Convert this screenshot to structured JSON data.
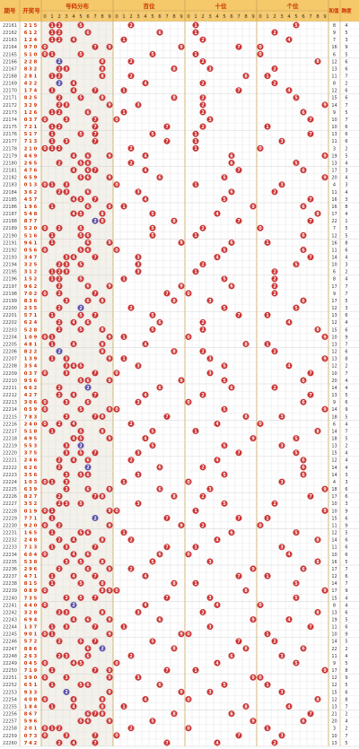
{
  "colors": {
    "header_bg": "#f5c86a",
    "header_text": "#cc3300",
    "grid": "#dddddd",
    "zone_a": "#ffffff",
    "zone_b": "#f3f1ea",
    "red_ball": "#cc3333",
    "blue_ball": "#5a4fa8",
    "blue_text": "#2233aa"
  },
  "header": {
    "issue_label": "期号",
    "draw_label": "开奖号",
    "sections": [
      "号码分布",
      "百位",
      "十位",
      "个位"
    ],
    "tail_label_a": "和值",
    "tail_label_b": "跨度"
  },
  "chart_data": {
    "type": "table",
    "title": "",
    "digit_columns": [
      "0",
      "1",
      "2",
      "3",
      "4",
      "5",
      "6",
      "7",
      "8",
      "9"
    ],
    "rows": [
      {
        "issue": "22161",
        "draw": [
          2,
          1,
          5
        ],
        "sum": 8,
        "span": 4
      },
      {
        "issue": "22162",
        "draw": [
          6,
          1,
          2
        ],
        "sum": 9,
        "span": 5
      },
      {
        "issue": "22163",
        "draw": [
          1,
          2,
          4
        ],
        "sum": 7,
        "span": 3
      },
      {
        "issue": "22164",
        "draw": [
          9,
          7,
          0
        ],
        "sum": 16,
        "span": 9
      },
      {
        "issue": "22165",
        "draw": [
          5,
          1,
          0
        ],
        "sum": 6,
        "span": 5
      },
      {
        "issue": "22166",
        "draw": [
          2,
          2,
          8
        ],
        "sum": 12,
        "span": 6
      },
      {
        "issue": "22167",
        "draw": [
          8,
          3,
          2
        ],
        "sum": 13,
        "span": 6
      },
      {
        "issue": "22168",
        "draw": [
          2,
          8,
          1
        ],
        "sum": 11,
        "span": 7
      },
      {
        "issue": "22169",
        "draw": [
          4,
          2,
          2
        ],
        "sum": 8,
        "span": 2
      },
      {
        "issue": "22170",
        "draw": [
          1,
          7,
          4
        ],
        "sum": 12,
        "span": 6
      },
      {
        "issue": "22171",
        "draw": [
          8,
          2,
          5
        ],
        "sum": 15,
        "span": 6
      },
      {
        "issue": "22172",
        "draw": [
          3,
          2,
          9
        ],
        "sum": 14,
        "span": 7
      },
      {
        "issue": "22173",
        "draw": [
          1,
          2,
          6
        ],
        "sum": 9,
        "span": 5
      },
      {
        "issue": "22174",
        "draw": [
          0,
          3,
          7
        ],
        "sum": 10,
        "span": 7
      },
      {
        "issue": "22175",
        "draw": [
          7,
          2,
          1
        ],
        "sum": 10,
        "span": 6
      },
      {
        "issue": "22176",
        "draw": [
          5,
          1,
          7
        ],
        "sum": 13,
        "span": 6
      },
      {
        "issue": "22177",
        "draw": [
          7,
          1,
          3
        ],
        "sum": 11,
        "span": 6
      },
      {
        "issue": "22178",
        "draw": [
          2,
          1,
          0
        ],
        "sum": 3,
        "span": 2
      },
      {
        "issue": "22179",
        "draw": [
          4,
          6,
          9
        ],
        "sum": 19,
        "span": 5
      },
      {
        "issue": "22180",
        "draw": [
          2,
          6,
          5
        ],
        "sum": 13,
        "span": 4
      },
      {
        "issue": "22181",
        "draw": [
          4,
          7,
          6
        ],
        "sum": 17,
        "span": 3
      },
      {
        "issue": "22182",
        "draw": [
          6,
          5,
          9
        ],
        "sum": 20,
        "span": 4
      },
      {
        "issue": "22183",
        "draw": [
          0,
          1,
          3
        ],
        "sum": 4,
        "span": 3
      },
      {
        "issue": "22184",
        "draw": [
          3,
          6,
          2
        ],
        "sum": 11,
        "span": 4
      },
      {
        "issue": "22185",
        "draw": [
          4,
          5,
          7
        ],
        "sum": 16,
        "span": 3
      },
      {
        "issue": "22186",
        "draw": [
          1,
          9,
          6
        ],
        "sum": 16,
        "span": 8
      },
      {
        "issue": "22187",
        "draw": [
          5,
          4,
          8
        ],
        "sum": 17,
        "span": 4
      },
      {
        "issue": "22188",
        "draw": [
          8,
          7,
          7
        ],
        "sum": 22,
        "span": 1
      },
      {
        "issue": "22189",
        "draw": [
          5,
          2,
          0
        ],
        "sum": 7,
        "span": 5
      },
      {
        "issue": "22190",
        "draw": [
          5,
          1,
          6
        ],
        "sum": 12,
        "span": 5
      },
      {
        "issue": "22191",
        "draw": [
          9,
          6,
          1
        ],
        "sum": 16,
        "span": 8
      },
      {
        "issue": "22192",
        "draw": [
          0,
          5,
          6
        ],
        "sum": 11,
        "span": 6
      },
      {
        "issue": "22193",
        "draw": [
          3,
          4,
          7
        ],
        "sum": 14,
        "span": 4
      },
      {
        "issue": "22194",
        "draw": [
          3,
          2,
          5
        ],
        "sum": 10,
        "span": 3
      },
      {
        "issue": "22195",
        "draw": [
          3,
          1,
          2
        ],
        "sum": 6,
        "span": 2
      },
      {
        "issue": "22196",
        "draw": [
          1,
          5,
          2
        ],
        "sum": 8,
        "span": 4
      },
      {
        "issue": "22197",
        "draw": [
          9,
          6,
          2
        ],
        "sum": 17,
        "span": 7
      },
      {
        "issue": "22198",
        "draw": [
          7,
          0,
          2
        ],
        "sum": 9,
        "span": 7
      },
      {
        "issue": "22199",
        "draw": [
          8,
          3,
          6
        ],
        "sum": 17,
        "span": 5
      },
      {
        "issue": "22200",
        "draw": [
          2,
          5,
          5
        ],
        "sum": 12,
        "span": 3
      },
      {
        "issue": "22201",
        "draw": [
          5,
          7,
          1
        ],
        "sum": 13,
        "span": 6
      },
      {
        "issue": "22202",
        "draw": [
          6,
          2,
          4
        ],
        "sum": 12,
        "span": 4
      },
      {
        "issue": "22203",
        "draw": [
          5,
          2,
          8
        ],
        "sum": 15,
        "span": 6
      },
      {
        "issue": "22204",
        "draw": [
          1,
          0,
          9
        ],
        "sum": 10,
        "span": 9
      },
      {
        "issue": "22205",
        "draw": [
          4,
          8,
          1
        ],
        "sum": 13,
        "span": 7
      },
      {
        "issue": "22206",
        "draw": [
          8,
          2,
          2
        ],
        "sum": 12,
        "span": 6
      },
      {
        "issue": "22207",
        "draw": [
          1,
          3,
          9
        ],
        "sum": 13,
        "span": 8
      },
      {
        "issue": "22208",
        "draw": [
          3,
          5,
          4
        ],
        "sum": 12,
        "span": 2
      },
      {
        "issue": "22209",
        "draw": [
          0,
          3,
          7
        ],
        "sum": 10,
        "span": 7
      },
      {
        "issue": "22210",
        "draw": [
          9,
          5,
          6
        ],
        "sum": 20,
        "span": 4
      },
      {
        "issue": "22211",
        "draw": [
          6,
          6,
          2
        ],
        "sum": 14,
        "span": 4
      },
      {
        "issue": "22212",
        "draw": [
          4,
          2,
          7
        ],
        "sum": 13,
        "span": 5
      },
      {
        "issue": "22213",
        "draw": [
          3,
          0,
          6
        ],
        "sum": 9,
        "span": 6
      },
      {
        "issue": "22214",
        "draw": [
          0,
          5,
          9
        ],
        "sum": 14,
        "span": 9
      },
      {
        "issue": "22215",
        "draw": [
          7,
          8,
          3
        ],
        "sum": 18,
        "span": 5
      },
      {
        "issue": "22216",
        "draw": [
          2,
          4,
          0
        ],
        "sum": 6,
        "span": 4
      },
      {
        "issue": "22217",
        "draw": [
          5,
          1,
          8
        ],
        "sum": 14,
        "span": 7
      },
      {
        "issue": "22218",
        "draw": [
          4,
          9,
          5
        ],
        "sum": 18,
        "span": 5
      },
      {
        "issue": "22219",
        "draw": [
          5,
          5,
          3
        ],
        "sum": 13,
        "span": 2
      },
      {
        "issue": "22220",
        "draw": [
          3,
          7,
          5
        ],
        "sum": 15,
        "span": 4
      },
      {
        "issue": "22221",
        "draw": [
          2,
          4,
          6
        ],
        "sum": 12,
        "span": 4
      },
      {
        "issue": "22222",
        "draw": [
          6,
          2,
          6
        ],
        "sum": 14,
        "span": 4
      },
      {
        "issue": "22223",
        "draw": [
          3,
          5,
          6
        ],
        "sum": 14,
        "span": 3
      },
      {
        "issue": "22224",
        "draw": [
          1,
          0,
          3
        ],
        "sum": 4,
        "span": 3
      },
      {
        "issue": "22225",
        "draw": [
          6,
          3,
          9
        ],
        "sum": 18,
        "span": 6
      },
      {
        "issue": "22226",
        "draw": [
          8,
          2,
          7
        ],
        "sum": 17,
        "span": 6
      },
      {
        "issue": "22227",
        "draw": [
          3,
          5,
          2
        ],
        "sum": 10,
        "span": 3
      },
      {
        "issue": "22228",
        "draw": [
          0,
          1,
          9
        ],
        "sum": 10,
        "span": 9
      },
      {
        "issue": "22229",
        "draw": [
          7,
          7,
          1
        ],
        "sum": 15,
        "span": 6
      },
      {
        "issue": "22230",
        "draw": [
          9,
          2,
          0
        ],
        "sum": 11,
        "span": 9
      },
      {
        "issue": "22231",
        "draw": [
          1,
          6,
          5
        ],
        "sum": 12,
        "span": 5
      },
      {
        "issue": "22232",
        "draw": [
          2,
          4,
          8
        ],
        "sum": 14,
        "span": 6
      },
      {
        "issue": "22233",
        "draw": [
          7,
          1,
          3
        ],
        "sum": 11,
        "span": 6
      },
      {
        "issue": "22234",
        "draw": [
          6,
          0,
          4
        ],
        "sum": 10,
        "span": 6
      },
      {
        "issue": "22235",
        "draw": [
          5,
          3,
          8
        ],
        "sum": 16,
        "span": 5
      },
      {
        "issue": "22236",
        "draw": [
          2,
          9,
          6
        ],
        "sum": 17,
        "span": 7
      },
      {
        "issue": "22237",
        "draw": [
          4,
          7,
          1
        ],
        "sum": 12,
        "span": 6
      },
      {
        "issue": "22238",
        "draw": [
          8,
          1,
          5
        ],
        "sum": 14,
        "span": 7
      },
      {
        "issue": "22239",
        "draw": [
          0,
          8,
          9
        ],
        "sum": 17,
        "span": 9
      },
      {
        "issue": "22240",
        "draw": [
          7,
          3,
          5
        ],
        "sum": 15,
        "span": 4
      },
      {
        "issue": "22241",
        "draw": [
          4,
          4,
          0
        ],
        "sum": 8,
        "span": 4
      },
      {
        "issue": "22242",
        "draw": [
          3,
          2,
          8
        ],
        "sum": 13,
        "span": 6
      },
      {
        "issue": "22243",
        "draw": [
          6,
          9,
          4
        ],
        "sum": 19,
        "span": 5
      },
      {
        "issue": "22244",
        "draw": [
          1,
          3,
          7
        ],
        "sum": 11,
        "span": 6
      },
      {
        "issue": "22245",
        "draw": [
          9,
          0,
          1
        ],
        "sum": 10,
        "span": 9
      },
      {
        "issue": "22246",
        "draw": [
          5,
          7,
          2
        ],
        "sum": 14,
        "span": 5
      },
      {
        "issue": "22247",
        "draw": [
          8,
          8,
          6
        ],
        "sum": 22,
        "span": 2
      },
      {
        "issue": "22248",
        "draw": [
          2,
          6,
          3
        ],
        "sum": 11,
        "span": 4
      },
      {
        "issue": "22249",
        "draw": [
          0,
          4,
          5
        ],
        "sum": 9,
        "span": 5
      },
      {
        "issue": "22250",
        "draw": [
          7,
          1,
          9
        ],
        "sum": 17,
        "span": 8
      },
      {
        "issue": "22251",
        "draw": [
          3,
          9,
          0
        ],
        "sum": 12,
        "span": 9
      },
      {
        "issue": "22252",
        "draw": [
          6,
          5,
          1
        ],
        "sum": 12,
        "span": 5
      },
      {
        "issue": "22253",
        "draw": [
          9,
          3,
          3
        ],
        "sum": 15,
        "span": 6
      },
      {
        "issue": "22254",
        "draw": [
          4,
          0,
          8
        ],
        "sum": 12,
        "span": 8
      },
      {
        "issue": "22255",
        "draw": [
          1,
          8,
          4
        ],
        "sum": 13,
        "span": 7
      },
      {
        "issue": "22256",
        "draw": [
          8,
          6,
          7
        ],
        "sum": 21,
        "span": 2
      },
      {
        "issue": "22257",
        "draw": [
          5,
          9,
          6
        ],
        "sum": 20,
        "span": 4
      },
      {
        "issue": "22258",
        "draw": [
          2,
          0,
          1
        ],
        "sum": 3,
        "span": 2
      },
      {
        "issue": "22259",
        "draw": [
          0,
          7,
          3
        ],
        "sum": 10,
        "span": 7
      },
      {
        "issue": "22260",
        "draw": [
          7,
          4,
          2
        ],
        "sum": 13,
        "span": 5
      }
    ]
  }
}
